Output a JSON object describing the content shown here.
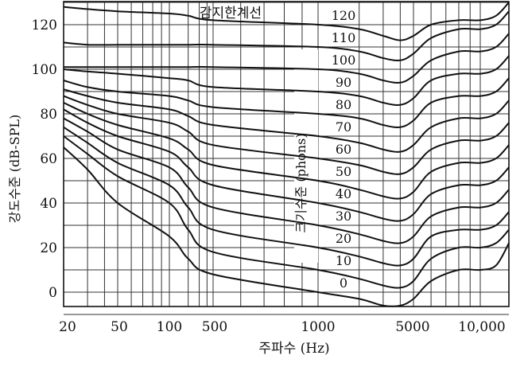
{
  "chart_data": {
    "type": "line",
    "title": "",
    "xlabel": "주파수 (Hz)",
    "ylabel": "강도수준 (dB-SPL)",
    "ylim": [
      -10,
      130
    ],
    "grid": true,
    "x_tick_labels": [
      "20",
      "50",
      "100",
      "500",
      "1000",
      "5000",
      "10,000"
    ],
    "y_tick_labels": [
      "0",
      "20",
      "40",
      "60",
      "80",
      "100",
      "120"
    ],
    "y_ticks": [
      0,
      20,
      40,
      60,
      80,
      100,
      120
    ],
    "curve_axis_label": "크기수준 (phons)",
    "threshold_label": "감지한계선",
    "x": [
      20,
      30,
      50,
      100,
      200,
      500,
      1000,
      2000,
      3000,
      4000,
      5000,
      6000,
      8000,
      10000,
      12500,
      15000
    ],
    "series": [
      {
        "name": "0",
        "values": [
          65,
          55,
          40,
          25,
          15,
          8,
          0,
          -3,
          -6,
          -6,
          -3,
          5,
          10,
          10,
          12,
          22
        ]
      },
      {
        "name": "10",
        "values": [
          70,
          62,
          52,
          40,
          28,
          18,
          10,
          6,
          3,
          2,
          5,
          15,
          20,
          20,
          22,
          28
        ]
      },
      {
        "name": "20",
        "values": [
          74,
          67,
          58,
          48,
          38,
          28,
          20,
          16,
          13,
          12,
          15,
          25,
          28,
          28,
          30,
          36
        ]
      },
      {
        "name": "30",
        "values": [
          78,
          72,
          64,
          56,
          47,
          38,
          30,
          26,
          23,
          22,
          25,
          34,
          38,
          38,
          40,
          46
        ]
      },
      {
        "name": "40",
        "values": [
          82,
          76,
          70,
          63,
          56,
          48,
          40,
          36,
          33,
          32,
          35,
          44,
          48,
          48,
          50,
          56
        ]
      },
      {
        "name": "50",
        "values": [
          85,
          80,
          75,
          69,
          64,
          57,
          50,
          46,
          43,
          42,
          45,
          54,
          58,
          58,
          60,
          66
        ]
      },
      {
        "name": "60",
        "values": [
          88,
          84,
          80,
          76,
          72,
          66,
          60,
          57,
          54,
          53,
          56,
          64,
          68,
          68,
          70,
          76
        ]
      },
      {
        "name": "70",
        "values": [
          91,
          88,
          85,
          82,
          79,
          75,
          70,
          67,
          64,
          63,
          66,
          74,
          78,
          78,
          80,
          86
        ]
      },
      {
        "name": "80",
        "values": [
          95,
          92,
          90,
          88,
          86,
          83,
          80,
          78,
          75,
          74,
          77,
          85,
          88,
          88,
          90,
          96
        ]
      },
      {
        "name": "90",
        "values": [
          100,
          99,
          98,
          96,
          95,
          92,
          90,
          88,
          85,
          84,
          87,
          95,
          98,
          98,
          100,
          106
        ]
      },
      {
        "name": "100",
        "values": [
          101,
          101,
          101,
          101,
          101,
          101,
          100,
          98,
          95,
          94,
          97,
          104,
          108,
          108,
          110,
          116
        ]
      },
      {
        "name": "110",
        "values": [
          112,
          111,
          111,
          111,
          111,
          111,
          110,
          108,
          105,
          104,
          107,
          114,
          118,
          118,
          120,
          126
        ]
      },
      {
        "name": "120",
        "values": [
          128,
          127,
          126,
          125,
          124,
          122,
          120,
          118,
          115,
          113,
          115,
          120,
          122,
          122,
          124,
          130
        ]
      }
    ]
  }
}
